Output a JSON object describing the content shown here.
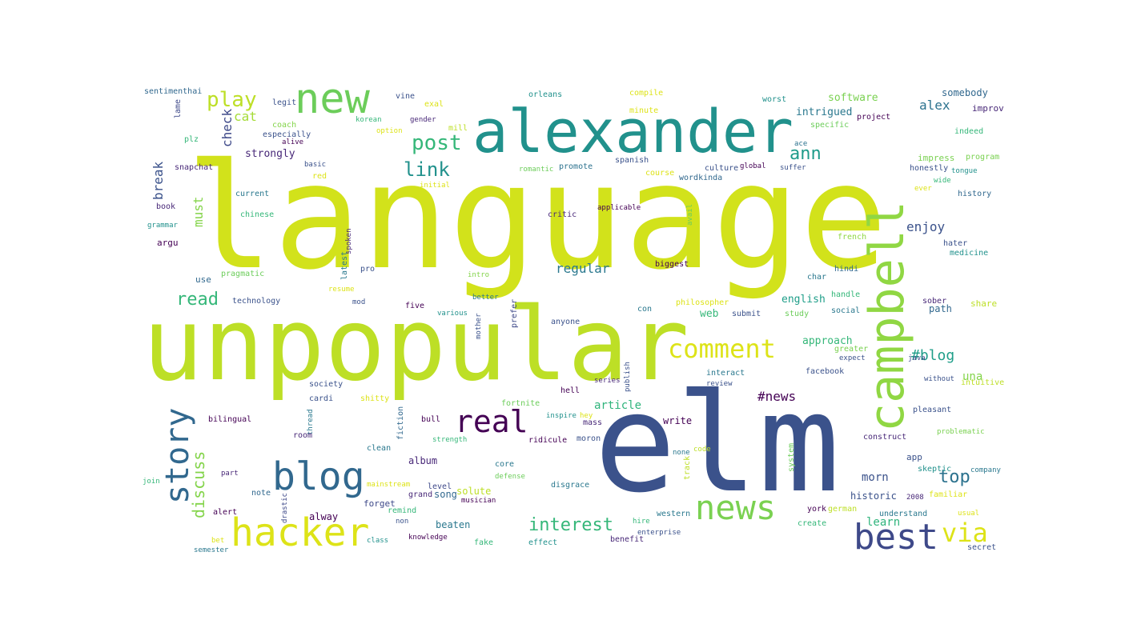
{
  "word_cloud": {
    "palette": {
      "purple": "#3b0f5f",
      "navy": "#3b528b",
      "blue": "#31688e",
      "teal": "#21918c",
      "green": "#35b779",
      "lime": "#90d743",
      "yellow": "#dde318"
    },
    "words": [
      {
        "text": "language",
        "color": "#d2e21b"
      },
      {
        "text": "unpopular",
        "color": "#bddf26"
      },
      {
        "text": "elm",
        "color": "#3b528b"
      },
      {
        "text": "alexander",
        "color": "#21918c"
      },
      {
        "text": "campbell",
        "color": "#90d743"
      },
      {
        "text": "new",
        "color": "#6ccd5a"
      },
      {
        "text": "hacker",
        "color": "#dde318"
      },
      {
        "text": "blog",
        "color": "#31688e"
      },
      {
        "text": "news",
        "color": "#7ad151"
      },
      {
        "text": "best",
        "color": "#3e4989"
      },
      {
        "text": "story",
        "color": "#31688e"
      },
      {
        "text": "real",
        "color": "#440154"
      },
      {
        "text": "comment",
        "color": "#dde318"
      },
      {
        "text": "via",
        "color": "#dde318"
      },
      {
        "text": "post",
        "color": "#35b779"
      },
      {
        "text": "play",
        "color": "#bddf26"
      },
      {
        "text": "link",
        "color": "#21918c"
      },
      {
        "text": "ann",
        "color": "#1e9b8a"
      },
      {
        "text": "read",
        "color": "#35b779"
      },
      {
        "text": "discuss",
        "color": "#84d44b"
      },
      {
        "text": "interest",
        "color": "#35b779"
      },
      {
        "text": "top",
        "color": "#2c728e"
      },
      {
        "text": "#blog",
        "color": "#1f9e89"
      },
      {
        "text": "#news",
        "color": "#440154"
      },
      {
        "text": "must",
        "color": "#84d44b"
      },
      {
        "text": "break",
        "color": "#3b528b"
      },
      {
        "text": "check",
        "color": "#3e4989"
      },
      {
        "text": "cat",
        "color": "#a5db36"
      },
      {
        "text": "regular",
        "color": "#2a788e"
      },
      {
        "text": "alex",
        "color": "#2c728e"
      },
      {
        "text": "enjoy",
        "color": "#3b528b"
      },
      {
        "text": "software",
        "color": "#7ad151"
      },
      {
        "text": "intrigued",
        "color": "#2a788e"
      },
      {
        "text": "strongly",
        "color": "#482878"
      },
      {
        "text": "article",
        "color": "#2fb47c"
      },
      {
        "text": "learn",
        "color": "#2fb47c"
      },
      {
        "text": "morn",
        "color": "#3b528b"
      },
      {
        "text": "english",
        "color": "#1f9e89"
      },
      {
        "text": "approach",
        "color": "#35b779"
      },
      {
        "text": "web",
        "color": "#35b779"
      },
      {
        "text": "write",
        "color": "#440154"
      },
      {
        "text": "beaten",
        "color": "#2a788e"
      },
      {
        "text": "song",
        "color": "#31688e"
      },
      {
        "text": "album",
        "color": "#482878"
      },
      {
        "text": "solute",
        "color": "#bddf26"
      },
      {
        "text": "historic",
        "color": "#3b528b"
      },
      {
        "text": "una",
        "color": "#84d44b"
      },
      {
        "text": "sentimenthai",
        "color": "#31688e"
      },
      {
        "text": "legit",
        "color": "#3b528b"
      },
      {
        "text": "lame",
        "color": "#3e4989"
      },
      {
        "text": "plz",
        "color": "#35b779"
      },
      {
        "text": "snapchat",
        "color": "#482878"
      },
      {
        "text": "book",
        "color": "#482878"
      },
      {
        "text": "grammar",
        "color": "#21918c"
      },
      {
        "text": "argu",
        "color": "#440154"
      },
      {
        "text": "use",
        "color": "#31688e"
      },
      {
        "text": "pragmatic",
        "color": "#6ccd5a"
      },
      {
        "text": "technology",
        "color": "#3b528b"
      },
      {
        "text": "current",
        "color": "#2a788e"
      },
      {
        "text": "chinese",
        "color": "#35b779"
      },
      {
        "text": "coach",
        "color": "#84d44b"
      },
      {
        "text": "especially",
        "color": "#3b528b"
      },
      {
        "text": "alive",
        "color": "#440154"
      },
      {
        "text": "basic",
        "color": "#3b528b"
      },
      {
        "text": "red",
        "color": "#dde318"
      },
      {
        "text": "korean",
        "color": "#35b779"
      },
      {
        "text": "option",
        "color": "#dde318"
      },
      {
        "text": "gender",
        "color": "#482878"
      },
      {
        "text": "vine",
        "color": "#3b528b"
      },
      {
        "text": "exal",
        "color": "#dde318"
      },
      {
        "text": "mill",
        "color": "#bddf26"
      },
      {
        "text": "initial",
        "color": "#dde318"
      },
      {
        "text": "orleans",
        "color": "#21918c"
      },
      {
        "text": "compile",
        "color": "#dde318"
      },
      {
        "text": "minute",
        "color": "#dde318"
      },
      {
        "text": "romantic",
        "color": "#6ccd5a"
      },
      {
        "text": "promote",
        "color": "#2c728e"
      },
      {
        "text": "spanish",
        "color": "#3b528b"
      },
      {
        "text": "course",
        "color": "#dde318"
      },
      {
        "text": "wordkinda",
        "color": "#31688e"
      },
      {
        "text": "culture",
        "color": "#3b528b"
      },
      {
        "text": "global",
        "color": "#440154"
      },
      {
        "text": "suffer",
        "color": "#3b528b"
      },
      {
        "text": "worst",
        "color": "#21918c"
      },
      {
        "text": "ace",
        "color": "#2c728e"
      },
      {
        "text": "specific",
        "color": "#6ccd5a"
      },
      {
        "text": "project",
        "color": "#440154"
      },
      {
        "text": "somebody",
        "color": "#31688e"
      },
      {
        "text": "improv",
        "color": "#482878"
      },
      {
        "text": "indeed",
        "color": "#35b779"
      },
      {
        "text": "impress",
        "color": "#7ad151"
      },
      {
        "text": "program",
        "color": "#7ad151"
      },
      {
        "text": "honestly",
        "color": "#3b528b"
      },
      {
        "text": "tongue",
        "color": "#21918c"
      },
      {
        "text": "wide",
        "color": "#35b779"
      },
      {
        "text": "ever",
        "color": "#dde318"
      },
      {
        "text": "history",
        "color": "#31688e"
      },
      {
        "text": "french",
        "color": "#90d743"
      },
      {
        "text": "hater",
        "color": "#3b528b"
      },
      {
        "text": "medicine",
        "color": "#21918c"
      },
      {
        "text": "hindi",
        "color": "#31688e"
      },
      {
        "text": "char",
        "color": "#2a788e"
      },
      {
        "text": "handle",
        "color": "#35b779"
      },
      {
        "text": "social",
        "color": "#2a788e"
      },
      {
        "text": "sober",
        "color": "#482878"
      },
      {
        "text": "path",
        "color": "#31688e"
      },
      {
        "text": "share",
        "color": "#bddf26"
      },
      {
        "text": "study",
        "color": "#6ccd5a"
      },
      {
        "text": "greater",
        "color": "#7ad151"
      },
      {
        "text": "expect",
        "color": "#3b528b"
      },
      {
        "text": "java",
        "color": "#3e4989"
      },
      {
        "text": "without",
        "color": "#3b528b"
      },
      {
        "text": "intuitive",
        "color": "#bddf26"
      },
      {
        "text": "facebook",
        "color": "#3b528b"
      },
      {
        "text": "pleasant",
        "color": "#3b528b"
      },
      {
        "text": "problematic",
        "color": "#7ad151"
      },
      {
        "text": "construct",
        "color": "#482878"
      },
      {
        "text": "app",
        "color": "#3b528b"
      },
      {
        "text": "skeptic",
        "color": "#21918c"
      },
      {
        "text": "company",
        "color": "#2a788e"
      },
      {
        "text": "2008",
        "color": "#482878"
      },
      {
        "text": "familiar",
        "color": "#dde318"
      },
      {
        "text": "understand",
        "color": "#2a788e"
      },
      {
        "text": "usual",
        "color": "#dde318"
      },
      {
        "text": "secret",
        "color": "#3b528b"
      },
      {
        "text": "york",
        "color": "#440154"
      },
      {
        "text": "german",
        "color": "#bddf26"
      },
      {
        "text": "create",
        "color": "#35b779"
      },
      {
        "text": "western",
        "color": "#2a788e"
      },
      {
        "text": "enterprise",
        "color": "#3b528b"
      },
      {
        "text": "hire",
        "color": "#35b779"
      },
      {
        "text": "benefit",
        "color": "#482878"
      },
      {
        "text": "effect",
        "color": "#21918c"
      },
      {
        "text": "fake",
        "color": "#35b779"
      },
      {
        "text": "knowledge",
        "color": "#440154"
      },
      {
        "text": "class",
        "color": "#21918c"
      },
      {
        "text": "non",
        "color": "#3b528b"
      },
      {
        "text": "remind",
        "color": "#35b779"
      },
      {
        "text": "forget",
        "color": "#3e4989"
      },
      {
        "text": "grand",
        "color": "#482878"
      },
      {
        "text": "level",
        "color": "#3e4989"
      },
      {
        "text": "musician",
        "color": "#440154"
      },
      {
        "text": "disgrace",
        "color": "#2a788e"
      },
      {
        "text": "moron",
        "color": "#3b528b"
      },
      {
        "text": "ridicule",
        "color": "#440154"
      },
      {
        "text": "mass",
        "color": "#482878"
      },
      {
        "text": "inspire",
        "color": "#21918c"
      },
      {
        "text": "hey",
        "color": "#dde318"
      },
      {
        "text": "fortnite",
        "color": "#6ccd5a"
      },
      {
        "text": "hell",
        "color": "#440154"
      },
      {
        "text": "review",
        "color": "#3b528b"
      },
      {
        "text": "interact",
        "color": "#2a788e"
      },
      {
        "text": "anyone",
        "color": "#3b528b"
      },
      {
        "text": "con",
        "color": "#2a788e"
      },
      {
        "text": "submit",
        "color": "#3b528b"
      },
      {
        "text": "philosopher",
        "color": "#dde318"
      },
      {
        "text": "biggest",
        "color": "#440154"
      },
      {
        "text": "applicable",
        "color": "#440154"
      },
      {
        "text": "critic",
        "color": "#482878"
      },
      {
        "text": "avail",
        "color": "#6ccd5a"
      },
      {
        "text": "prefer",
        "color": "#3e4989"
      },
      {
        "text": "better",
        "color": "#2a788e"
      },
      {
        "text": "intro",
        "color": "#84d44b"
      },
      {
        "text": "mother",
        "color": "#3b528b"
      },
      {
        "text": "various",
        "color": "#21918c"
      },
      {
        "text": "five",
        "color": "#440154"
      },
      {
        "text": "mod",
        "color": "#3b528b"
      },
      {
        "text": "resume",
        "color": "#dde318"
      },
      {
        "text": "pro",
        "color": "#3b528b"
      },
      {
        "text": "latest",
        "color": "#2a788e"
      },
      {
        "text": "spoken",
        "color": "#482878"
      },
      {
        "text": "society",
        "color": "#3b528b"
      },
      {
        "text": "cardi",
        "color": "#3b528b"
      },
      {
        "text": "shitty",
        "color": "#dde318"
      },
      {
        "text": "bilingual",
        "color": "#440154"
      },
      {
        "text": "thread",
        "color": "#2a788e"
      },
      {
        "text": "room",
        "color": "#482878"
      },
      {
        "text": "fiction",
        "color": "#31688e"
      },
      {
        "text": "bull",
        "color": "#440154"
      },
      {
        "text": "clean",
        "color": "#2a788e"
      },
      {
        "text": "strength",
        "color": "#35b779"
      },
      {
        "text": "core",
        "color": "#2a788e"
      },
      {
        "text": "defense",
        "color": "#6ccd5a"
      },
      {
        "text": "mainstream",
        "color": "#dde318"
      },
      {
        "text": "part",
        "color": "#482878"
      },
      {
        "text": "note",
        "color": "#31688e"
      },
      {
        "text": "join",
        "color": "#35b779"
      },
      {
        "text": "alert",
        "color": "#440154"
      },
      {
        "text": "bet",
        "color": "#dde318"
      },
      {
        "text": "semester",
        "color": "#2a788e"
      },
      {
        "text": "alway",
        "color": "#440154"
      },
      {
        "text": "drastic",
        "color": "#3e4989"
      },
      {
        "text": "series",
        "color": "#482878"
      },
      {
        "text": "publish",
        "color": "#3b528b"
      },
      {
        "text": "none",
        "color": "#2a788e"
      },
      {
        "text": "track",
        "color": "#bddf26"
      },
      {
        "text": "code",
        "color": "#bddf26"
      },
      {
        "text": "system",
        "color": "#6ccd5a"
      }
    ]
  }
}
